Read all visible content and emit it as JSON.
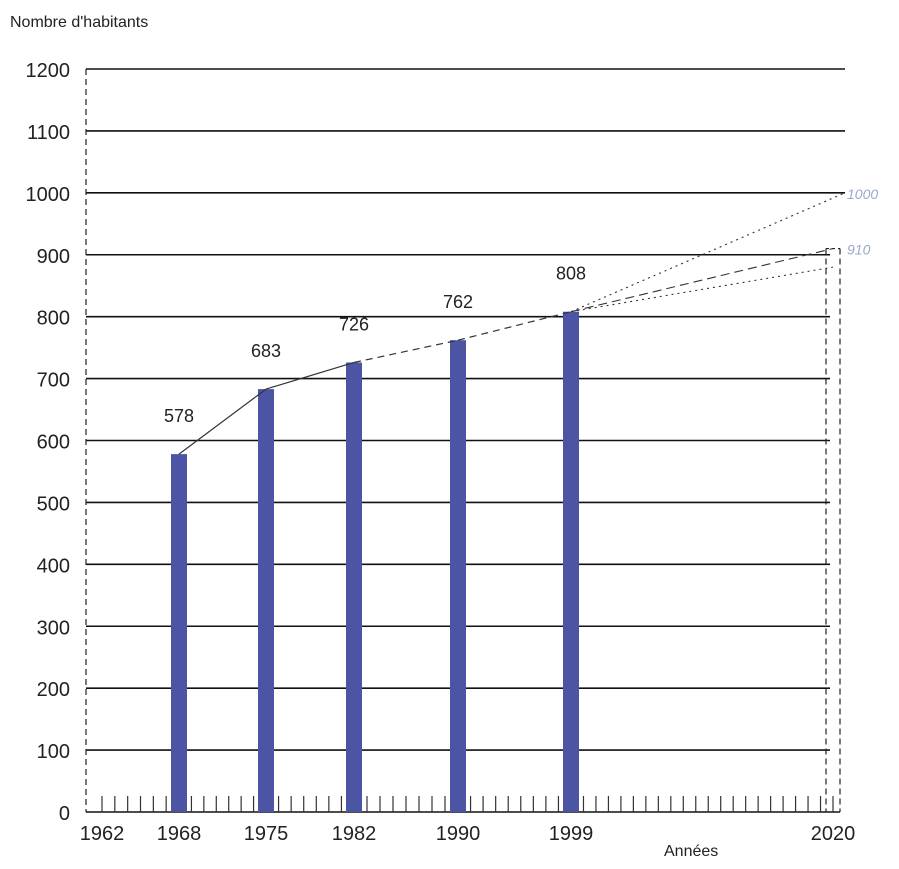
{
  "chart_data": {
    "type": "bar",
    "ylabel": "Nombre d'habitants",
    "xlabel": "Années",
    "ylim": [
      0,
      1200
    ],
    "y_ticks": [
      0,
      100,
      200,
      300,
      400,
      500,
      600,
      700,
      800,
      900,
      1000,
      1100,
      1200
    ],
    "x_ticks": [
      1962,
      1968,
      1975,
      1982,
      1990,
      1999,
      2020
    ],
    "grid": true,
    "bar_color": "#4b55a3",
    "bars": [
      {
        "year": 1968,
        "value": 578,
        "label": "578"
      },
      {
        "year": 1975,
        "value": 683,
        "label": "683"
      },
      {
        "year": 1982,
        "value": 726,
        "label": "726"
      },
      {
        "year": 1990,
        "value": 762,
        "label": "762"
      },
      {
        "year": 1999,
        "value": 808,
        "label": "808"
      }
    ],
    "projections": [
      {
        "from_year": 1999,
        "from_value": 808,
        "to_year": 2020,
        "to_value": 1000,
        "label": "1000",
        "style": "dotted"
      },
      {
        "from_year": 1999,
        "from_value": 808,
        "to_year": 2020,
        "to_value": 910,
        "label": "910",
        "style": "dashed"
      },
      {
        "from_year": 1999,
        "from_value": 808,
        "to_year": 2020,
        "to_value": 880,
        "label": "",
        "style": "dotted"
      }
    ],
    "projection_label_color": "#9aa8c8"
  }
}
